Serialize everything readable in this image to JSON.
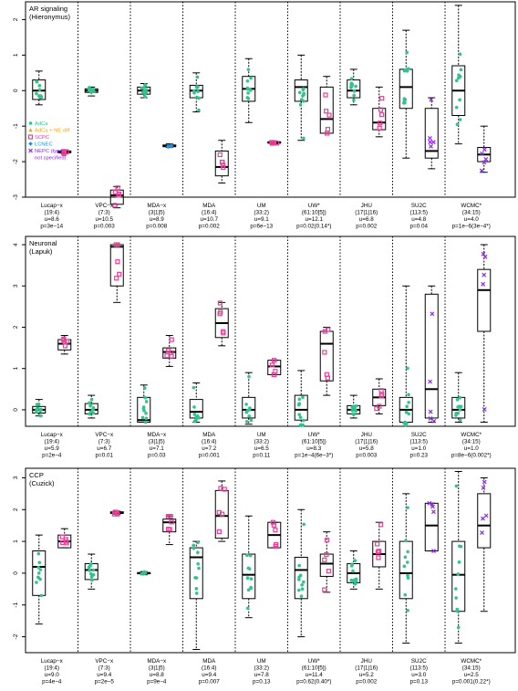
{
  "colors": {
    "AdCa": "#2ec48a",
    "AdCa_NE_diff": "#f5a30f",
    "SCPC": "#e8409a",
    "LCNEC": "#1f8fdc",
    "NEPC": "#8a2be2",
    "box": "#000000"
  },
  "legend": [
    {
      "label": "AdCa",
      "color_key": "AdCa",
      "marker": "circle"
    },
    {
      "label": "AdCa + NE diff",
      "color_key": "AdCa_NE_diff",
      "marker": "triangle"
    },
    {
      "label": "SCPC",
      "color_key": "SCPC",
      "marker": "square"
    },
    {
      "label": "LCNEC",
      "color_key": "LCNEC",
      "marker": "diamond"
    },
    {
      "label": "NEPC (type",
      "color_key": "NEPC",
      "marker": "x"
    },
    {
      "label": "not specified)",
      "color_key": "NEPC",
      "marker": "none"
    }
  ],
  "chart_data": [
    {
      "type": "box",
      "title": "AR signaling",
      "subtitle": "(Hieronymus)",
      "ylim": [
        -3,
        2.5
      ],
      "yticks": [
        -3,
        -2,
        -1,
        0,
        1,
        2
      ],
      "groups": [
        {
          "label": [
            "Lucap−x",
            "(19:4)",
            "u=8.6",
            "p=3e−14"
          ],
          "boxes": [
            {
              "class": "AdCa",
              "q": [
                -0.4,
                -0.25,
                0.0,
                0.3,
                0.55
              ]
            },
            {
              "class": "SCPC",
              "q": [
                -1.78,
                -1.75,
                -1.72,
                -1.7,
                -1.67
              ]
            }
          ]
        },
        {
          "label": [
            "VPC−x",
            "(7:3)",
            "u=10.5",
            "p=0.003"
          ],
          "boxes": [
            {
              "class": "AdCa",
              "q": [
                -0.15,
                -0.05,
                0.0,
                0.05,
                0.1
              ]
            },
            {
              "class": "SCPC",
              "q": [
                -3.3,
                -3.2,
                -2.95,
                -2.8,
                -2.7
              ]
            }
          ]
        },
        {
          "label": [
            "MDA−x",
            "(3|1|5)",
            "u=8.9",
            "p=0.008"
          ],
          "boxes": [
            {
              "class": "AdCa",
              "q": [
                -0.2,
                -0.1,
                0.0,
                0.1,
                0.2
              ]
            },
            {
              "class": "LCNEC",
              "q": [
                -1.6,
                -1.58,
                -1.55,
                -1.53,
                -1.5
              ]
            }
          ]
        },
        {
          "label": [
            "MDA",
            "(16:4)",
            "u=10.7",
            "p=0.002"
          ],
          "boxes": [
            {
              "class": "AdCa",
              "q": [
                -0.6,
                -0.2,
                0.0,
                0.15,
                0.5
              ]
            },
            {
              "class": "SCPC",
              "q": [
                -2.6,
                -2.4,
                -2.15,
                -1.7,
                -1.4
              ]
            }
          ]
        },
        {
          "label": [
            "UM",
            "(33:2)",
            "u=9.1",
            "p=6e−13"
          ],
          "boxes": [
            {
              "class": "AdCa",
              "q": [
                -0.9,
                -0.3,
                0.05,
                0.4,
                0.9
              ]
            },
            {
              "class": "SCPC",
              "q": [
                -1.5,
                -1.48,
                -1.46,
                -1.44,
                -1.42
              ]
            }
          ]
        },
        {
          "label": [
            "UW*",
            "(61:10[5])",
            "u=12.1",
            "p=0.02(0.14*)"
          ],
          "boxes": [
            {
              "class": "AdCa",
              "q": [
                -1.4,
                -0.3,
                0.1,
                0.3,
                1.0
              ]
            },
            {
              "class": "SCPC",
              "q": [
                -1.2,
                -1.2,
                -0.8,
                0.1,
                0.4
              ]
            }
          ]
        },
        {
          "label": [
            "JHU",
            "(17|1|16)",
            "u=6.8",
            "p=0.002"
          ],
          "boxes": [
            {
              "class": "AdCa",
              "q": [
                -0.4,
                -0.2,
                0.0,
                0.3,
                0.6
              ]
            },
            {
              "class": "SCPC",
              "q": [
                -1.3,
                -1.1,
                -0.9,
                -0.5,
                0.1
              ]
            }
          ]
        },
        {
          "label": [
            "SU2C",
            "(113:5)",
            "u=4.8",
            "p=0.04"
          ],
          "boxes": [
            {
              "class": "AdCa",
              "q": [
                -1.9,
                -0.5,
                0.1,
                0.6,
                1.7
              ]
            },
            {
              "class": "NEPC",
              "q": [
                -2.2,
                -1.9,
                -1.7,
                -0.5,
                -0.2
              ]
            }
          ]
        },
        {
          "label": [
            "WCMC*",
            "(34:15)",
            "u=4.0",
            "p=1e−6(3e−4*)"
          ],
          "boxes": [
            {
              "class": "AdCa",
              "q": [
                -1.5,
                -0.7,
                0.0,
                0.7,
                2.4
              ]
            },
            {
              "class": "NEPC",
              "q": [
                -2.3,
                -2.0,
                -1.8,
                -1.6,
                -1.0
              ]
            }
          ]
        }
      ]
    },
    {
      "type": "box",
      "title": "Neuronal",
      "subtitle": "(Lapuk)",
      "ylim": [
        -0.4,
        4.2
      ],
      "yticks": [
        0,
        1,
        2,
        3,
        4
      ],
      "groups": [
        {
          "label": [
            "Lucap−x",
            "(19:4)",
            "u=5.9",
            "p=2e−4"
          ],
          "boxes": [
            {
              "class": "AdCa",
              "q": [
                -0.15,
                -0.08,
                0.0,
                0.08,
                0.25
              ]
            },
            {
              "class": "SCPC",
              "q": [
                1.35,
                1.45,
                1.6,
                1.7,
                1.8
              ]
            }
          ]
        },
        {
          "label": [
            "VPC−x",
            "(7:3)",
            "u=6.7",
            "p=0.01"
          ],
          "boxes": [
            {
              "class": "AdCa",
              "q": [
                -0.2,
                -0.1,
                0.0,
                0.15,
                0.35
              ]
            },
            {
              "class": "SCPC",
              "q": [
                2.6,
                3.0,
                3.95,
                4.0,
                4.0
              ]
            }
          ]
        },
        {
          "label": [
            "MDA−x",
            "(3|1|5)",
            "u=7.1",
            "p=0.03"
          ],
          "boxes": [
            {
              "class": "AdCa",
              "q": [
                -0.3,
                -0.3,
                -0.25,
                0.3,
                0.6
              ]
            },
            {
              "class": "SCPC",
              "q": [
                1.05,
                1.25,
                1.4,
                1.5,
                1.8
              ]
            }
          ]
        },
        {
          "label": [
            "MDA",
            "(16:4)",
            "u=7.2",
            "p=0.001"
          ],
          "boxes": [
            {
              "class": "AdCa",
              "q": [
                -0.3,
                -0.2,
                -0.05,
                0.25,
                0.65
              ]
            },
            {
              "class": "SCPC",
              "q": [
                1.55,
                1.75,
                2.1,
                2.45,
                2.6
              ]
            }
          ]
        },
        {
          "label": [
            "UM",
            "(33:2)",
            "u=6.5",
            "p=0.11"
          ],
          "boxes": [
            {
              "class": "AdCa",
              "q": [
                -0.35,
                -0.2,
                0.0,
                0.3,
                0.9
              ]
            },
            {
              "class": "SCPC",
              "q": [
                0.85,
                0.85,
                1.05,
                1.2,
                1.2
              ]
            }
          ]
        },
        {
          "label": [
            "UW*",
            "(61:10[5])",
            "u=8.3",
            "p=1e−4(6e−3*)"
          ],
          "boxes": [
            {
              "class": "AdCa",
              "q": [
                -0.4,
                -0.25,
                0.0,
                0.35,
                0.95
              ]
            },
            {
              "class": "SCPC",
              "q": [
                0.35,
                0.7,
                1.6,
                1.9,
                2.0
              ]
            }
          ]
        },
        {
          "label": [
            "JHU",
            "(17|1|16)",
            "u=5.8",
            "p=0.003"
          ],
          "boxes": [
            {
              "class": "AdCa",
              "q": [
                -0.2,
                -0.1,
                0.0,
                0.1,
                0.35
              ]
            },
            {
              "class": "SCPC",
              "q": [
                -0.1,
                0.1,
                0.3,
                0.5,
                0.75
              ]
            }
          ]
        },
        {
          "label": [
            "SU2C",
            "(113:5)",
            "u=1.0",
            "p=0.23"
          ],
          "boxes": [
            {
              "class": "AdCa",
              "q": [
                -0.4,
                -0.3,
                0.0,
                0.3,
                3.0
              ]
            },
            {
              "class": "NEPC",
              "q": [
                -0.3,
                -0.2,
                0.5,
                2.8,
                3.0
              ]
            }
          ]
        },
        {
          "label": [
            "WCMC*",
            "(34:15)",
            "u=1.0",
            "p=8e−6(0.002*)"
          ],
          "boxes": [
            {
              "class": "AdCa",
              "q": [
                -0.3,
                -0.2,
                0.0,
                0.3,
                0.9
              ]
            },
            {
              "class": "NEPC",
              "q": [
                -0.3,
                1.9,
                2.9,
                3.4,
                4.0
              ]
            }
          ]
        }
      ]
    },
    {
      "type": "box",
      "title": "CCP",
      "subtitle": "(Cuzick)",
      "ylim": [
        -2.5,
        3.3
      ],
      "yticks": [
        -2,
        -1,
        0,
        1,
        2,
        3
      ],
      "groups": [
        {
          "label": [
            "Lucap−x",
            "(19:4)",
            "u=9.0",
            "p=4e−4"
          ],
          "boxes": [
            {
              "class": "AdCa",
              "q": [
                -1.6,
                -0.7,
                0.2,
                0.7,
                1.2
              ]
            },
            {
              "class": "SCPC",
              "q": [
                0.8,
                0.8,
                1.0,
                1.2,
                1.4
              ]
            }
          ]
        },
        {
          "label": [
            "VPC−x",
            "(7:3)",
            "u=9.4",
            "p=2e−5"
          ],
          "boxes": [
            {
              "class": "AdCa",
              "q": [
                -0.5,
                -0.2,
                0.1,
                0.3,
                0.6
              ]
            },
            {
              "class": "SCPC",
              "q": [
                1.85,
                1.88,
                1.9,
                1.93,
                1.95
              ]
            }
          ]
        },
        {
          "label": [
            "MDA−x",
            "(3|1|5)",
            "u=8.8",
            "p=9e−4"
          ],
          "boxes": [
            {
              "class": "AdCa",
              "q": [
                -0.05,
                -0.02,
                0.0,
                0.02,
                0.05
              ]
            },
            {
              "class": "SCPC",
              "q": [
                0.9,
                1.3,
                1.6,
                1.7,
                1.8
              ]
            }
          ]
        },
        {
          "label": [
            "MDA",
            "(16:4)",
            "u=9.4",
            "p=0.007"
          ],
          "boxes": [
            {
              "class": "AdCa",
              "q": [
                -2.4,
                -0.8,
                0.5,
                0.8,
                1.0
              ]
            },
            {
              "class": "SCPC",
              "q": [
                1.0,
                1.1,
                1.8,
                2.6,
                2.9
              ]
            }
          ]
        },
        {
          "label": [
            "UM",
            "(33:2)",
            "u=7.8",
            "p=0.13"
          ],
          "boxes": [
            {
              "class": "AdCa",
              "q": [
                -1.4,
                -0.8,
                -0.05,
                0.6,
                1.8
              ]
            },
            {
              "class": "SCPC",
              "q": [
                0.8,
                0.8,
                1.2,
                1.6,
                1.6
              ]
            }
          ]
        },
        {
          "label": [
            "UW*",
            "(61:10[5])",
            "u=11.4",
            "p=0.62(0.40*)"
          ],
          "boxes": [
            {
              "class": "AdCa",
              "q": [
                -2.0,
                -0.8,
                0.1,
                0.5,
                2.0
              ]
            },
            {
              "class": "SCPC",
              "q": [
                -0.6,
                -0.1,
                0.3,
                0.6,
                1.3
              ]
            }
          ]
        },
        {
          "label": [
            "JHU",
            "(17|1|16)",
            "u=5.2",
            "p=0.002"
          ],
          "boxes": [
            {
              "class": "AdCa",
              "q": [
                -0.5,
                -0.3,
                0.0,
                0.3,
                0.7
              ]
            },
            {
              "class": "SCPC",
              "q": [
                -0.5,
                0.2,
                0.6,
                1.0,
                1.6
              ]
            }
          ]
        },
        {
          "label": [
            "SU2C",
            "(113:5)",
            "u=3.0",
            "p=0.13"
          ],
          "boxes": [
            {
              "class": "AdCa",
              "q": [
                -2.2,
                -0.8,
                0.0,
                1.0,
                2.5
              ]
            },
            {
              "class": "NEPC",
              "q": [
                0.7,
                0.7,
                1.5,
                2.2,
                2.2
              ]
            }
          ]
        },
        {
          "label": [
            "WCMC*",
            "(34:15)",
            "u=2.5",
            "p=0.001(0.22*)"
          ],
          "boxes": [
            {
              "class": "AdCa",
              "q": [
                -2.2,
                -1.2,
                -0.05,
                1.0,
                3.2
              ]
            },
            {
              "class": "NEPC",
              "q": [
                -1.2,
                0.8,
                1.5,
                2.5,
                3.0
              ]
            }
          ]
        }
      ]
    }
  ]
}
